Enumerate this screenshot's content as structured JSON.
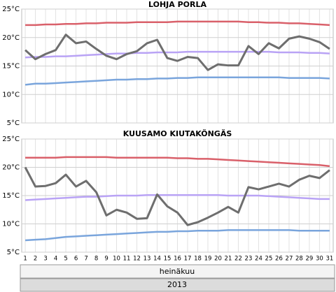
{
  "chart_data": [
    {
      "type": "line",
      "title": "LOHJA PORLA",
      "x": [
        1,
        2,
        3,
        4,
        5,
        6,
        7,
        8,
        9,
        10,
        11,
        12,
        13,
        14,
        15,
        16,
        17,
        18,
        19,
        20,
        21,
        22,
        23,
        24,
        25,
        26,
        27,
        28,
        29,
        30,
        31
      ],
      "xlim": [
        0.65,
        31.35
      ],
      "ylim": [
        5,
        25
      ],
      "yticks": [
        {
          "value": 5,
          "label": "5°C"
        },
        {
          "value": 10,
          "label": "10°C"
        },
        {
          "value": 15,
          "label": "15°C"
        },
        {
          "value": 20,
          "label": "20°C"
        },
        {
          "value": 25,
          "label": "25°C"
        }
      ],
      "grid": true,
      "series": [
        {
          "color": "#d9606a",
          "values": [
            22.2,
            22.2,
            22.3,
            22.3,
            22.4,
            22.4,
            22.5,
            22.5,
            22.6,
            22.6,
            22.6,
            22.7,
            22.7,
            22.7,
            22.7,
            22.8,
            22.8,
            22.8,
            22.8,
            22.8,
            22.8,
            22.8,
            22.7,
            22.7,
            22.6,
            22.6,
            22.5,
            22.5,
            22.4,
            22.3,
            22.2
          ]
        },
        {
          "color": "#b9a3f5",
          "values": [
            16.5,
            16.6,
            16.6,
            16.7,
            16.7,
            16.8,
            16.9,
            17.0,
            17.1,
            17.2,
            17.2,
            17.3,
            17.3,
            17.4,
            17.4,
            17.4,
            17.5,
            17.5,
            17.5,
            17.5,
            17.5,
            17.5,
            17.5,
            17.5,
            17.5,
            17.4,
            17.4,
            17.4,
            17.3,
            17.3,
            17.2
          ]
        },
        {
          "color": "#7aa5dc",
          "values": [
            11.7,
            11.9,
            11.9,
            12.0,
            12.1,
            12.2,
            12.3,
            12.4,
            12.5,
            12.6,
            12.6,
            12.7,
            12.7,
            12.8,
            12.8,
            12.9,
            12.9,
            13.0,
            13.0,
            13.0,
            13.0,
            13.0,
            13.0,
            13.0,
            13.0,
            13.0,
            12.9,
            12.9,
            12.9,
            12.9,
            12.8
          ]
        },
        {
          "color": "#6e6e6e",
          "values": [
            17.8,
            16.2,
            17.1,
            17.8,
            20.5,
            19.0,
            19.3,
            18.0,
            16.8,
            16.2,
            17.1,
            17.6,
            19.0,
            19.6,
            16.4,
            15.9,
            16.6,
            16.4,
            14.3,
            15.3,
            15.1,
            15.1,
            18.5,
            17.1,
            19.0,
            18.1,
            19.8,
            20.2,
            19.8,
            19.2,
            18.0
          ]
        }
      ]
    },
    {
      "type": "line",
      "title": "KUUSAMO KIUTAKÖNGÄS",
      "x": [
        1,
        2,
        3,
        4,
        5,
        6,
        7,
        8,
        9,
        10,
        11,
        12,
        13,
        14,
        15,
        16,
        17,
        18,
        19,
        20,
        21,
        22,
        23,
        24,
        25,
        26,
        27,
        28,
        29,
        30,
        31
      ],
      "xlim": [
        0.65,
        31.35
      ],
      "ylim": [
        5,
        25
      ],
      "yticks": [
        {
          "value": 5,
          "label": "5°C"
        },
        {
          "value": 10,
          "label": "10°C"
        },
        {
          "value": 15,
          "label": "15°C"
        },
        {
          "value": 20,
          "label": "20°C"
        },
        {
          "value": 25,
          "label": "25°C"
        }
      ],
      "grid": true,
      "series": [
        {
          "color": "#d9606a",
          "values": [
            21.7,
            21.7,
            21.7,
            21.7,
            21.8,
            21.8,
            21.8,
            21.8,
            21.8,
            21.7,
            21.7,
            21.7,
            21.7,
            21.7,
            21.7,
            21.6,
            21.6,
            21.5,
            21.5,
            21.4,
            21.3,
            21.2,
            21.1,
            21.0,
            20.9,
            20.8,
            20.7,
            20.6,
            20.5,
            20.4,
            20.2
          ]
        },
        {
          "color": "#b9a3f5",
          "values": [
            14.2,
            14.3,
            14.4,
            14.5,
            14.6,
            14.7,
            14.8,
            14.8,
            14.9,
            15.0,
            15.0,
            15.0,
            15.1,
            15.1,
            15.1,
            15.1,
            15.1,
            15.1,
            15.1,
            15.1,
            15.0,
            15.0,
            15.0,
            15.0,
            14.9,
            14.8,
            14.7,
            14.6,
            14.5,
            14.4,
            14.4
          ]
        },
        {
          "color": "#7aa5dc",
          "values": [
            7.1,
            7.2,
            7.3,
            7.5,
            7.7,
            7.8,
            7.9,
            8.0,
            8.1,
            8.2,
            8.3,
            8.4,
            8.5,
            8.6,
            8.6,
            8.7,
            8.7,
            8.8,
            8.8,
            8.8,
            8.9,
            8.9,
            8.9,
            8.9,
            8.9,
            8.9,
            8.9,
            8.8,
            8.8,
            8.8,
            8.8
          ]
        },
        {
          "color": "#6e6e6e",
          "values": [
            20.0,
            16.6,
            16.7,
            17.2,
            18.7,
            16.6,
            17.6,
            15.6,
            11.5,
            12.5,
            12.0,
            10.9,
            11.0,
            15.2,
            13.1,
            12.0,
            9.8,
            10.3,
            11.1,
            12.0,
            13.0,
            12.0,
            16.5,
            16.1,
            16.6,
            17.1,
            16.6,
            17.8,
            18.5,
            18.1,
            19.5
          ]
        }
      ]
    }
  ],
  "axis_bands": {
    "month": "heinäkuu",
    "year": "2013"
  }
}
